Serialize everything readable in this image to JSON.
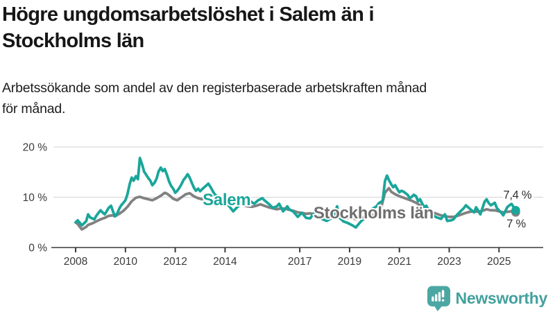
{
  "chart_data": {
    "type": "line",
    "title": "Högre ungdomsarbetslöshet i Salem än i Stockholms län",
    "title_lines": [
      "Högre ungdomsarbetslöshet i Salem än i",
      "Stockholms län"
    ],
    "subtitle": "Arbetssökande som andel av den registerbaserade arbetskraften månad för månad.",
    "subtitle_lines": [
      "Arbetssökande som andel av den registerbaserade arbetskraften månad",
      "för månad."
    ],
    "xlabel": "",
    "ylabel": "",
    "xlim": [
      2007.1,
      2026.8
    ],
    "ylim": [
      0,
      21.6
    ],
    "grid": "horizontal-light",
    "legend": "inline-labels",
    "x_ticks": [
      2008,
      2010,
      2012,
      2014,
      2017,
      2019,
      2021,
      2023,
      2025
    ],
    "x_tick_labels": [
      "2008",
      "2010",
      "2012",
      "2014",
      "2017",
      "2019",
      "2021",
      "2023",
      "2025"
    ],
    "y_ticks": [
      {
        "value": 0,
        "label": "0 %"
      },
      {
        "value": 10,
        "label": "10 %"
      },
      {
        "value": 20,
        "label": "20 %"
      }
    ],
    "series": [
      {
        "name": "Stockholms län",
        "color": "#818181",
        "label_color": "#6e6e6e",
        "end_value": 7.0,
        "end_label": "7 %",
        "points": [
          [
            2008.0,
            5.0
          ],
          [
            2008.08,
            4.7
          ],
          [
            2008.17,
            4.1
          ],
          [
            2008.25,
            3.6
          ],
          [
            2008.42,
            4.1
          ],
          [
            2008.5,
            4.5
          ],
          [
            2008.67,
            4.8
          ],
          [
            2008.83,
            5.2
          ],
          [
            2009.0,
            5.6
          ],
          [
            2009.17,
            5.9
          ],
          [
            2009.33,
            6.3
          ],
          [
            2009.5,
            6.4
          ],
          [
            2009.58,
            6.2
          ],
          [
            2009.75,
            6.7
          ],
          [
            2009.92,
            7.3
          ],
          [
            2010.08,
            8.1
          ],
          [
            2010.25,
            9.2
          ],
          [
            2010.42,
            9.9
          ],
          [
            2010.58,
            10.1
          ],
          [
            2010.75,
            9.8
          ],
          [
            2010.92,
            9.6
          ],
          [
            2011.08,
            9.4
          ],
          [
            2011.25,
            9.8
          ],
          [
            2011.42,
            10.3
          ],
          [
            2011.58,
            10.9
          ],
          [
            2011.67,
            10.7
          ],
          [
            2011.83,
            10.1
          ],
          [
            2011.92,
            9.7
          ],
          [
            2012.08,
            9.4
          ],
          [
            2012.25,
            10.0
          ],
          [
            2012.42,
            10.6
          ],
          [
            2012.58,
            10.8
          ],
          [
            2012.75,
            10.2
          ],
          [
            2012.92,
            9.8
          ],
          [
            2013.08,
            9.6
          ],
          [
            2013.25,
            10.1
          ],
          [
            2013.42,
            10.4
          ],
          [
            2013.58,
            10.1
          ],
          [
            2013.75,
            9.6
          ],
          [
            2013.92,
            9.2
          ],
          [
            2014.08,
            8.9
          ],
          [
            2014.25,
            8.7
          ],
          [
            2014.42,
            8.9
          ],
          [
            2014.58,
            8.7
          ],
          [
            2014.75,
            8.4
          ],
          [
            2014.92,
            8.2
          ],
          [
            2015.08,
            8.1
          ],
          [
            2015.25,
            8.3
          ],
          [
            2015.42,
            8.6
          ],
          [
            2015.58,
            8.3
          ],
          [
            2015.75,
            8.0
          ],
          [
            2015.92,
            7.8
          ],
          [
            2016.08,
            7.6
          ],
          [
            2016.25,
            7.8
          ],
          [
            2016.42,
            7.7
          ],
          [
            2016.58,
            7.5
          ],
          [
            2016.75,
            7.3
          ],
          [
            2016.92,
            7.0
          ],
          [
            2017.08,
            6.9
          ],
          [
            2017.25,
            6.7
          ],
          [
            2017.42,
            6.8
          ],
          [
            2017.58,
            6.6
          ],
          [
            2017.75,
            6.4
          ],
          [
            2017.92,
            6.3
          ],
          [
            2018.08,
            6.2
          ],
          [
            2018.25,
            6.4
          ],
          [
            2018.42,
            6.5
          ],
          [
            2018.58,
            6.3
          ],
          [
            2018.75,
            6.1
          ],
          [
            2018.92,
            5.9
          ],
          [
            2019.08,
            5.8
          ],
          [
            2019.25,
            5.7
          ],
          [
            2019.42,
            5.9
          ],
          [
            2019.58,
            6.0
          ],
          [
            2019.75,
            6.1
          ],
          [
            2019.92,
            6.4
          ],
          [
            2020.08,
            6.7
          ],
          [
            2020.25,
            7.6
          ],
          [
            2020.42,
            10.9
          ],
          [
            2020.58,
            11.8
          ],
          [
            2020.67,
            11.1
          ],
          [
            2020.83,
            10.6
          ],
          [
            2020.92,
            10.4
          ],
          [
            2021.0,
            10.2
          ],
          [
            2021.17,
            9.9
          ],
          [
            2021.33,
            9.6
          ],
          [
            2021.5,
            9.3
          ],
          [
            2021.67,
            8.9
          ],
          [
            2021.83,
            8.4
          ],
          [
            2022.0,
            7.9
          ],
          [
            2022.17,
            7.4
          ],
          [
            2022.33,
            7.0
          ],
          [
            2022.5,
            6.7
          ],
          [
            2022.67,
            6.4
          ],
          [
            2022.83,
            6.2
          ],
          [
            2023.0,
            6.1
          ],
          [
            2023.17,
            6.1
          ],
          [
            2023.33,
            6.3
          ],
          [
            2023.5,
            6.6
          ],
          [
            2023.67,
            6.9
          ],
          [
            2023.83,
            7.1
          ],
          [
            2024.0,
            7.2
          ],
          [
            2024.17,
            7.1
          ],
          [
            2024.33,
            7.3
          ],
          [
            2024.5,
            7.6
          ],
          [
            2024.67,
            7.4
          ],
          [
            2024.83,
            7.4
          ],
          [
            2025.0,
            7.2
          ],
          [
            2025.17,
            7.0
          ],
          [
            2025.33,
            7.1
          ],
          [
            2025.5,
            7.2
          ],
          [
            2025.58,
            7.1
          ],
          [
            2025.67,
            7.0
          ]
        ]
      },
      {
        "name": "Salem",
        "color": "#1aa69a",
        "label_color": "#1aa69a",
        "end_value": 7.4,
        "end_label": "7,4 %",
        "points": [
          [
            2008.0,
            5.0
          ],
          [
            2008.08,
            5.4
          ],
          [
            2008.17,
            4.9
          ],
          [
            2008.25,
            4.4
          ],
          [
            2008.42,
            5.2
          ],
          [
            2008.5,
            6.6
          ],
          [
            2008.58,
            6.0
          ],
          [
            2008.75,
            5.6
          ],
          [
            2008.83,
            6.3
          ],
          [
            2008.92,
            6.9
          ],
          [
            2009.0,
            7.4
          ],
          [
            2009.08,
            7.0
          ],
          [
            2009.17,
            6.6
          ],
          [
            2009.33,
            7.9
          ],
          [
            2009.42,
            8.3
          ],
          [
            2009.5,
            7.2
          ],
          [
            2009.58,
            6.2
          ],
          [
            2009.67,
            6.8
          ],
          [
            2009.75,
            7.7
          ],
          [
            2009.83,
            8.4
          ],
          [
            2009.92,
            8.9
          ],
          [
            2010.0,
            9.4
          ],
          [
            2010.08,
            10.6
          ],
          [
            2010.17,
            12.6
          ],
          [
            2010.25,
            13.9
          ],
          [
            2010.33,
            13.3
          ],
          [
            2010.42,
            14.2
          ],
          [
            2010.5,
            13.6
          ],
          [
            2010.58,
            17.8
          ],
          [
            2010.67,
            16.5
          ],
          [
            2010.75,
            15.1
          ],
          [
            2010.83,
            14.5
          ],
          [
            2010.92,
            13.8
          ],
          [
            2011.0,
            13.3
          ],
          [
            2011.08,
            12.4
          ],
          [
            2011.17,
            12.9
          ],
          [
            2011.25,
            13.7
          ],
          [
            2011.33,
            15.1
          ],
          [
            2011.42,
            15.9
          ],
          [
            2011.5,
            15.2
          ],
          [
            2011.58,
            15.6
          ],
          [
            2011.67,
            14.4
          ],
          [
            2011.75,
            13.2
          ],
          [
            2011.83,
            12.3
          ],
          [
            2011.92,
            11.7
          ],
          [
            2012.0,
            10.9
          ],
          [
            2012.08,
            11.3
          ],
          [
            2012.17,
            11.9
          ],
          [
            2012.25,
            12.6
          ],
          [
            2012.33,
            13.4
          ],
          [
            2012.42,
            14.0
          ],
          [
            2012.5,
            14.6
          ],
          [
            2012.58,
            13.9
          ],
          [
            2012.67,
            12.8
          ],
          [
            2012.75,
            11.9
          ],
          [
            2012.83,
            11.3
          ],
          [
            2012.92,
            11.7
          ],
          [
            2013.0,
            11.2
          ],
          [
            2013.08,
            11.6
          ],
          [
            2013.17,
            12.0
          ],
          [
            2013.33,
            12.7
          ],
          [
            2013.42,
            12.0
          ],
          [
            2013.5,
            11.3
          ],
          [
            2013.58,
            10.6
          ],
          [
            2013.75,
            10.0
          ],
          [
            2013.92,
            9.3
          ],
          [
            2014.0,
            9.0
          ],
          [
            2014.08,
            8.6
          ],
          [
            2014.17,
            8.2
          ],
          [
            2014.33,
            7.2
          ],
          [
            2014.5,
            8.1
          ],
          [
            2014.67,
            8.7
          ],
          [
            2014.83,
            9.0
          ],
          [
            2015.0,
            9.3
          ],
          [
            2015.08,
            9.0
          ],
          [
            2015.17,
            8.7
          ],
          [
            2015.33,
            9.4
          ],
          [
            2015.5,
            9.8
          ],
          [
            2015.58,
            9.4
          ],
          [
            2015.75,
            8.7
          ],
          [
            2015.92,
            7.9
          ],
          [
            2016.08,
            8.2
          ],
          [
            2016.17,
            8.7
          ],
          [
            2016.33,
            7.2
          ],
          [
            2016.42,
            7.7
          ],
          [
            2016.5,
            8.2
          ],
          [
            2016.58,
            7.6
          ],
          [
            2016.75,
            7.1
          ],
          [
            2016.92,
            6.1
          ],
          [
            2017.08,
            6.9
          ],
          [
            2017.17,
            6.4
          ],
          [
            2017.25,
            5.9
          ],
          [
            2017.42,
            5.8
          ],
          [
            2017.5,
            6.4
          ],
          [
            2017.58,
            6.9
          ],
          [
            2017.75,
            6.3
          ],
          [
            2017.92,
            5.6
          ],
          [
            2018.08,
            5.3
          ],
          [
            2018.25,
            5.8
          ],
          [
            2018.42,
            6.9
          ],
          [
            2018.5,
            8.2
          ],
          [
            2018.58,
            6.0
          ],
          [
            2018.75,
            5.2
          ],
          [
            2018.92,
            4.9
          ],
          [
            2019.08,
            4.5
          ],
          [
            2019.25,
            4.0
          ],
          [
            2019.42,
            5.0
          ],
          [
            2019.5,
            5.4
          ],
          [
            2019.58,
            5.7
          ],
          [
            2019.75,
            6.5
          ],
          [
            2019.92,
            7.7
          ],
          [
            2020.08,
            8.2
          ],
          [
            2020.17,
            8.8
          ],
          [
            2020.33,
            9.3
          ],
          [
            2020.42,
            13.2
          ],
          [
            2020.5,
            14.3
          ],
          [
            2020.58,
            13.4
          ],
          [
            2020.67,
            12.6
          ],
          [
            2020.75,
            12.0
          ],
          [
            2020.83,
            12.4
          ],
          [
            2020.92,
            11.6
          ],
          [
            2021.0,
            11.0
          ],
          [
            2021.08,
            11.3
          ],
          [
            2021.17,
            11.1
          ],
          [
            2021.33,
            10.5
          ],
          [
            2021.42,
            9.8
          ],
          [
            2021.5,
            10.1
          ],
          [
            2021.58,
            10.5
          ],
          [
            2021.67,
            10.2
          ],
          [
            2021.75,
            9.2
          ],
          [
            2021.83,
            9.6
          ],
          [
            2021.92,
            8.7
          ],
          [
            2022.0,
            8.0
          ],
          [
            2022.08,
            8.3
          ],
          [
            2022.17,
            7.4
          ],
          [
            2022.33,
            6.4
          ],
          [
            2022.5,
            6.0
          ],
          [
            2022.67,
            5.7
          ],
          [
            2022.75,
            6.2
          ],
          [
            2022.83,
            6.6
          ],
          [
            2022.92,
            5.3
          ],
          [
            2023.08,
            5.4
          ],
          [
            2023.17,
            5.6
          ],
          [
            2023.33,
            6.6
          ],
          [
            2023.5,
            7.4
          ],
          [
            2023.58,
            7.8
          ],
          [
            2023.67,
            8.4
          ],
          [
            2023.83,
            7.7
          ],
          [
            2024.0,
            7.0
          ],
          [
            2024.08,
            8.0
          ],
          [
            2024.17,
            7.3
          ],
          [
            2024.25,
            6.6
          ],
          [
            2024.42,
            9.1
          ],
          [
            2024.5,
            9.6
          ],
          [
            2024.58,
            8.9
          ],
          [
            2024.67,
            8.4
          ],
          [
            2024.83,
            8.9
          ],
          [
            2024.92,
            7.8
          ],
          [
            2025.0,
            7.4
          ],
          [
            2025.08,
            7.0
          ],
          [
            2025.17,
            6.4
          ],
          [
            2025.33,
            8.0
          ],
          [
            2025.42,
            8.4
          ],
          [
            2025.5,
            8.7
          ],
          [
            2025.58,
            8.1
          ],
          [
            2025.67,
            7.4
          ]
        ]
      }
    ],
    "annotations": [
      {
        "text": "Salem",
        "t": 2013.1,
        "v": 8.4,
        "color": "#1aa69a",
        "weight": "bold",
        "size": 24,
        "anchor": "start",
        "halo": 4
      },
      {
        "text": "Stockholms län",
        "t": 2017.55,
        "v": 5.8,
        "color": "#6e6e6e",
        "weight": "bold",
        "size": 24,
        "anchor": "start",
        "halo": 4
      },
      {
        "text": "7,4 %",
        "t": 2025.74,
        "v": 9.7,
        "color": "#2e2e2e",
        "weight": "normal",
        "size": 16.5,
        "anchor": "middle",
        "halo": 7
      },
      {
        "text": "7 %",
        "t": 2025.69,
        "v": 4.0,
        "color": "#2e2e2e",
        "weight": "normal",
        "size": 16.5,
        "anchor": "middle",
        "halo": 7
      }
    ]
  },
  "footer": {
    "brand": "Newsworthy",
    "brand_color": "#43a19e",
    "logo_icon": "bar-chart-speech-bubble",
    "logo_color": "#4ca7a3"
  }
}
